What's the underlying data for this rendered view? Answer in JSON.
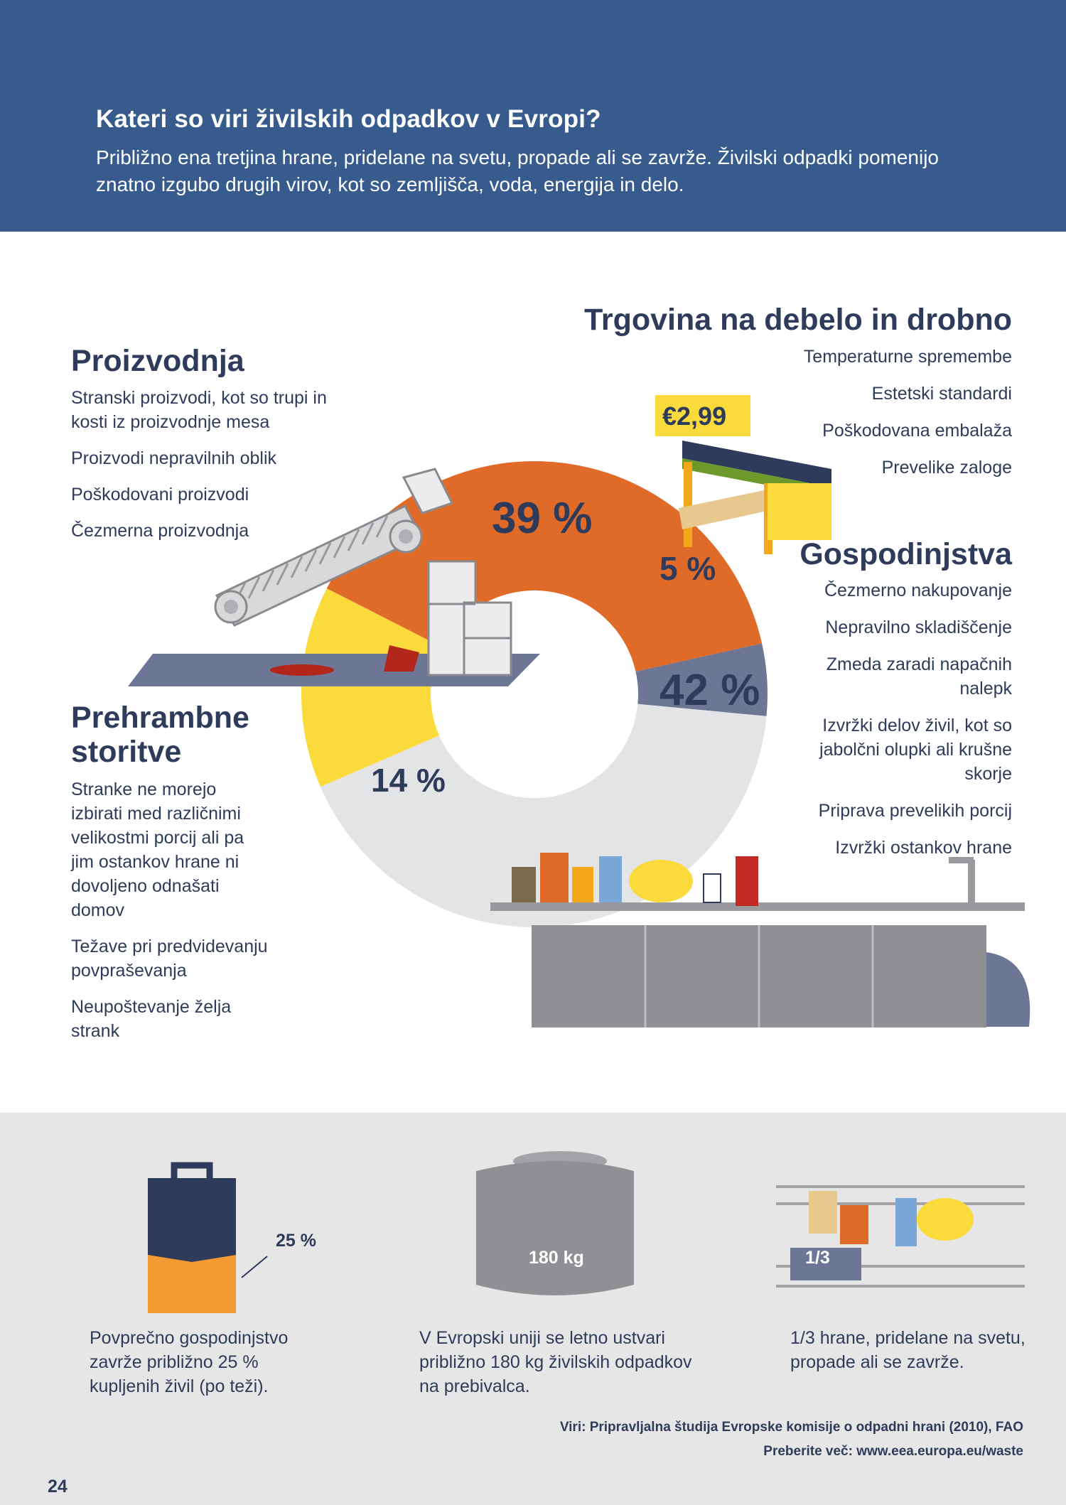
{
  "header": {
    "title": "Kateri so viri živilskih odpadkov v Evropi?",
    "intro": "Približno ena tretjina hrane, pridelane na svetu, propade ali se zavrže. Živilski odpadki pomenijo znatno izgubo drugih virov, kot so zemljišča, voda, energija in delo."
  },
  "sections": {
    "production": {
      "title": "Proizvodnja",
      "items": [
        "Stranski proizvodi, kot so trupi in kosti iz proizvodnje mesa",
        "Proizvodi nepravilnih oblik",
        "Poškodovani proizvodi",
        "Čezmerna proizvodnja"
      ]
    },
    "retail": {
      "title": "Trgovina na debelo in drobno",
      "items": [
        "Temperaturne spremembe",
        "Estetski standardi",
        "Poškodovana embalaža",
        "Prevelike zaloge"
      ],
      "price_tag": "€2,99"
    },
    "households": {
      "title": "Gospodinjstva",
      "items": [
        "Čezmerno nakupovanje",
        "Nepravilno skladiščenje",
        "Zmeda zaradi napačnih nalepk",
        "Izvržki delov živil, kot so jabolčni olupki ali krušne skorje",
        "Priprava prevelikih porcij",
        "Izvržki ostankov hrane"
      ]
    },
    "food_services": {
      "title": "Prehrambne storitve",
      "items": [
        "Stranke ne morejo izbirati med različnimi velikostmi porcij ali pa jim ostankov hrane ni dovoljeno odnašati domov",
        "Težave pri predvidevanju povpraševanja",
        "Neupoštevanje želja strank"
      ]
    }
  },
  "chart_data": {
    "type": "pie",
    "title": "",
    "categories": [
      "Proizvodnja",
      "Trgovina na debelo in drobno",
      "Gospodinjstva",
      "Prehrambne storitve"
    ],
    "values": [
      39,
      5,
      42,
      14
    ],
    "labels": [
      "39 %",
      "5 %",
      "42 %",
      "14 %"
    ],
    "colors": [
      "#e06a28",
      "#6d7694",
      "#e3e4e6",
      "#fbdb3b"
    ],
    "unit": "%",
    "donut": true
  },
  "stats": [
    {
      "label": "25 %",
      "value": 25,
      "text": "Povprečno gospodinjstvo zavrže približno 25 % kupljenih živil (po teži).",
      "icon": "shopping-bag-icon"
    },
    {
      "label": "180 kg",
      "value": 180,
      "text": "V Evropski uniji se letno ustvari približno 180 kg živilskih odpadkov na prebivalca.",
      "icon": "bin-icon"
    },
    {
      "label": "1/3",
      "value": 0.333,
      "text": "1/3 hrane, pridelane na svetu, propade ali se zavrže.",
      "icon": "groceries-shelf-icon"
    }
  ],
  "sources": {
    "line1": "Viri: Pripravljalna študija Evropske komisije o odpadni hrani (2010), FAO",
    "line2": "Preberite več: www.eea.europa.eu/waste"
  },
  "page_number": "24"
}
